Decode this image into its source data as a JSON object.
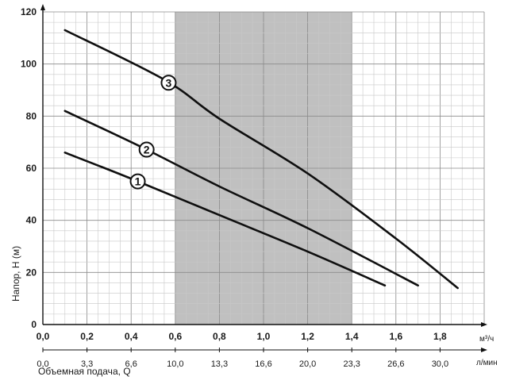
{
  "chart_data": {
    "type": "line",
    "title": "",
    "ylabel": "Напор, H (м)",
    "xlabel": "Объемная подача, Q",
    "x_unit_primary": "м³/ч",
    "x_unit_secondary": "л/мин",
    "xlim": [
      0,
      2.0
    ],
    "ylim": [
      0,
      120
    ],
    "x_ticks": [
      "0,0",
      "0,2",
      "0,4",
      "0,6",
      "0,8",
      "1,0",
      "1,2",
      "1,4",
      "1,6",
      "1,8"
    ],
    "x_ticks_secondary": [
      "0,0",
      "3,3",
      "6,6",
      "10,0",
      "13,3",
      "16,6",
      "20,0",
      "23,3",
      "26,6",
      "30,0"
    ],
    "y_ticks": [
      "0",
      "20",
      "40",
      "60",
      "80",
      "100",
      "120"
    ],
    "grid": true,
    "shaded_region": {
      "x_from": 0.6,
      "x_to": 1.4
    },
    "series": [
      {
        "name": "1",
        "x": [
          0.1,
          0.4,
          0.8,
          1.2,
          1.55
        ],
        "y": [
          66,
          56,
          42,
          28,
          15
        ]
      },
      {
        "name": "2",
        "x": [
          0.1,
          0.45,
          0.8,
          1.2,
          1.7
        ],
        "y": [
          82,
          68,
          53,
          37,
          15
        ]
      },
      {
        "name": "3",
        "x": [
          0.1,
          0.55,
          0.8,
          1.2,
          1.6,
          1.88
        ],
        "y": [
          113,
          94,
          79,
          58,
          33,
          14
        ]
      }
    ],
    "label_positions": [
      0.43,
      0.47,
      0.57
    ],
    "colors": {
      "line": "#0f0f0f",
      "grid_major": "#8a8a8a",
      "grid_minor": "#c8c8c8",
      "shade": "#c0c0c0"
    }
  }
}
